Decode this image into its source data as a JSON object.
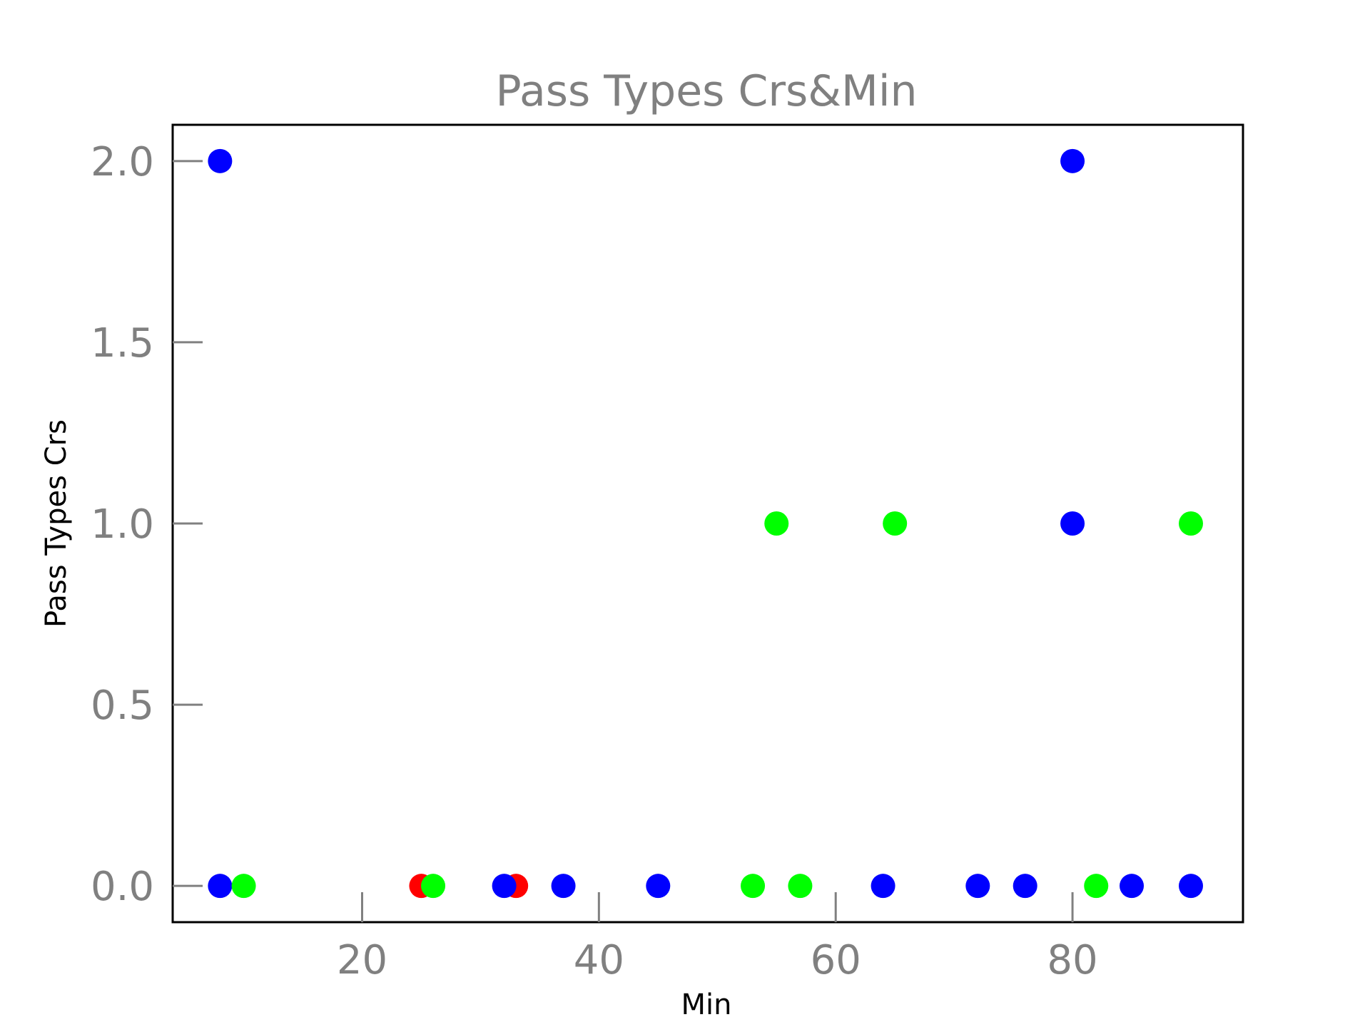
{
  "chart_data": {
    "type": "scatter",
    "title": "Pass Types Crs&Min",
    "xlabel": "Min",
    "ylabel": "Pass Types Crs",
    "xlim": [
      4,
      94.4
    ],
    "ylim": [
      -0.1,
      2.1
    ],
    "xticks": [
      20,
      40,
      60,
      80
    ],
    "xtick_labels": [
      "20",
      "40",
      "60",
      "80"
    ],
    "yticks": [
      0.0,
      0.5,
      1.0,
      1.5,
      2.0
    ],
    "ytick_labels": [
      "0.0",
      "0.5",
      "1.0",
      "1.5",
      "2.0"
    ],
    "grid": false,
    "legend": "none",
    "points": [
      {
        "x": 8,
        "y": 2,
        "color": "#0000ff"
      },
      {
        "x": 8,
        "y": 0,
        "color": "#0000ff"
      },
      {
        "x": 10,
        "y": 0,
        "color": "#00ff00"
      },
      {
        "x": 25,
        "y": 0,
        "color": "#ff0000"
      },
      {
        "x": 26,
        "y": 0,
        "color": "#00ff00"
      },
      {
        "x": 33,
        "y": 0,
        "color": "#ff0000"
      },
      {
        "x": 32,
        "y": 0,
        "color": "#0000ff"
      },
      {
        "x": 37,
        "y": 0,
        "color": "#0000ff"
      },
      {
        "x": 45,
        "y": 0,
        "color": "#0000ff"
      },
      {
        "x": 53,
        "y": 0,
        "color": "#00ff00"
      },
      {
        "x": 55,
        "y": 1,
        "color": "#00ff00"
      },
      {
        "x": 57,
        "y": 0,
        "color": "#00ff00"
      },
      {
        "x": 64,
        "y": 0,
        "color": "#0000ff"
      },
      {
        "x": 65,
        "y": 1,
        "color": "#00ff00"
      },
      {
        "x": 72,
        "y": 0,
        "color": "#0000ff"
      },
      {
        "x": 76,
        "y": 0,
        "color": "#0000ff"
      },
      {
        "x": 80,
        "y": 2,
        "color": "#0000ff"
      },
      {
        "x": 80,
        "y": 1,
        "color": "#0000ff"
      },
      {
        "x": 82,
        "y": 0,
        "color": "#00ff00"
      },
      {
        "x": 85,
        "y": 0,
        "color": "#0000ff"
      },
      {
        "x": 90,
        "y": 1,
        "color": "#00ff00"
      },
      {
        "x": 90,
        "y": 0,
        "color": "#0000ff"
      }
    ]
  }
}
